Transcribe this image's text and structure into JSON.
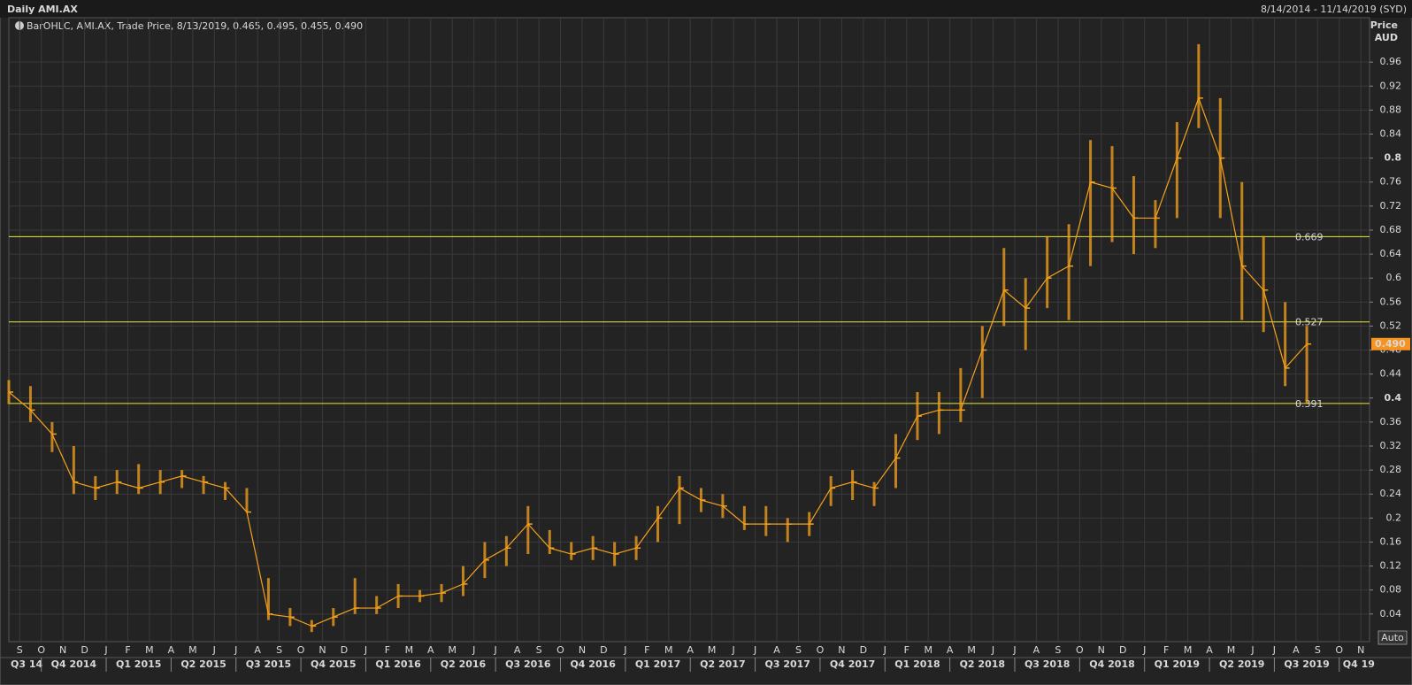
{
  "chart_data": {
    "type": "ohlc",
    "title": "Daily AMI.AX",
    "date_range": "8/14/2014 - 11/14/2019 (SYD)",
    "legend_text": "BarOHLC, AMI.AX, Trade Price, 8/13/2019, 0.465, 0.495, 0.455, 0.490",
    "y_axis_title": "Price",
    "y_axis_unit": "AUD",
    "button": "Auto",
    "x": [
      "2014-08",
      "2014-09",
      "2014-10",
      "2014-11",
      "2014-12",
      "2015-01",
      "2015-02",
      "2015-03",
      "2015-04",
      "2015-05",
      "2015-06",
      "2015-07",
      "2015-08",
      "2015-09",
      "2015-10",
      "2015-11",
      "2015-12",
      "2016-01",
      "2016-02",
      "2016-03",
      "2016-04",
      "2016-05",
      "2016-06",
      "2016-07",
      "2016-08",
      "2016-09",
      "2016-10",
      "2016-11",
      "2016-12",
      "2017-01",
      "2017-02",
      "2017-03",
      "2017-04",
      "2017-05",
      "2017-06",
      "2017-07",
      "2017-08",
      "2017-09",
      "2017-10",
      "2017-11",
      "2017-12",
      "2018-01",
      "2018-02",
      "2018-03",
      "2018-04",
      "2018-05",
      "2018-06",
      "2018-07",
      "2018-08",
      "2018-09",
      "2018-10",
      "2018-11",
      "2018-12",
      "2019-01",
      "2019-02",
      "2019-03",
      "2019-04",
      "2019-05",
      "2019-06",
      "2019-07",
      "2019-08"
    ],
    "series": [
      {
        "name": "AMI.AX",
        "color": "#f7a21b",
        "high": [
          0.43,
          0.42,
          0.36,
          0.32,
          0.27,
          0.28,
          0.29,
          0.28,
          0.28,
          0.27,
          0.26,
          0.25,
          0.1,
          0.05,
          0.03,
          0.05,
          0.1,
          0.07,
          0.09,
          0.08,
          0.09,
          0.12,
          0.16,
          0.17,
          0.22,
          0.18,
          0.16,
          0.17,
          0.16,
          0.17,
          0.22,
          0.27,
          0.25,
          0.24,
          0.22,
          0.22,
          0.2,
          0.21,
          0.27,
          0.28,
          0.26,
          0.34,
          0.41,
          0.41,
          0.45,
          0.52,
          0.65,
          0.6,
          0.67,
          0.69,
          0.83,
          0.82,
          0.77,
          0.73,
          0.86,
          0.99,
          0.9,
          0.76,
          0.67,
          0.56,
          0.52
        ],
        "low": [
          0.39,
          0.36,
          0.31,
          0.24,
          0.23,
          0.24,
          0.24,
          0.24,
          0.25,
          0.24,
          0.23,
          0.21,
          0.03,
          0.02,
          0.01,
          0.02,
          0.04,
          0.04,
          0.05,
          0.06,
          0.06,
          0.07,
          0.1,
          0.12,
          0.14,
          0.14,
          0.13,
          0.13,
          0.12,
          0.13,
          0.16,
          0.19,
          0.21,
          0.2,
          0.18,
          0.17,
          0.16,
          0.17,
          0.22,
          0.23,
          0.22,
          0.25,
          0.33,
          0.34,
          0.36,
          0.4,
          0.52,
          0.48,
          0.55,
          0.53,
          0.62,
          0.66,
          0.64,
          0.65,
          0.7,
          0.85,
          0.7,
          0.53,
          0.51,
          0.42,
          0.39
        ],
        "close": [
          0.41,
          0.38,
          0.34,
          0.26,
          0.25,
          0.26,
          0.25,
          0.26,
          0.27,
          0.26,
          0.25,
          0.21,
          0.04,
          0.035,
          0.02,
          0.035,
          0.05,
          0.05,
          0.07,
          0.07,
          0.075,
          0.09,
          0.13,
          0.15,
          0.19,
          0.15,
          0.14,
          0.15,
          0.14,
          0.15,
          0.2,
          0.25,
          0.23,
          0.22,
          0.19,
          0.19,
          0.19,
          0.19,
          0.25,
          0.26,
          0.25,
          0.3,
          0.37,
          0.38,
          0.38,
          0.48,
          0.58,
          0.55,
          0.6,
          0.62,
          0.76,
          0.75,
          0.7,
          0.7,
          0.8,
          0.9,
          0.8,
          0.62,
          0.58,
          0.45,
          0.49
        ]
      }
    ],
    "levels": [
      0.669,
      0.527,
      0.391
    ],
    "last_price": {
      "value": 0.49,
      "label": "0.490"
    },
    "ylim": [
      -0.006,
      1.034
    ],
    "yticks": [
      0.04,
      0.08,
      0.12,
      0.16,
      0.2,
      0.24,
      0.28,
      0.32,
      0.36,
      0.4,
      0.44,
      0.48,
      0.52,
      0.56,
      0.6,
      0.64,
      0.68,
      0.72,
      0.76,
      0.8,
      0.84,
      0.88,
      0.92,
      0.96
    ],
    "month_labels": [
      "S",
      "O",
      "N",
      "D",
      "J",
      "F",
      "M",
      "A",
      "M",
      "J",
      "J",
      "A",
      "S",
      "O",
      "N",
      "D",
      "J",
      "F",
      "M",
      "A",
      "M",
      "J",
      "J",
      "A",
      "S",
      "O",
      "N",
      "D",
      "J",
      "F",
      "M",
      "A",
      "M",
      "J",
      "J",
      "A",
      "S",
      "O",
      "N",
      "D",
      "J",
      "F",
      "M",
      "A",
      "M",
      "J",
      "J",
      "A",
      "S",
      "O",
      "N",
      "D",
      "J",
      "F",
      "M",
      "A",
      "M",
      "J",
      "J",
      "A",
      "S",
      "O",
      "N"
    ],
    "quarter_labels": [
      "Q3 14",
      "Q4 2014",
      "Q1 2015",
      "Q2 2015",
      "Q3 2015",
      "Q4 2015",
      "Q1 2016",
      "Q2 2016",
      "Q3 2016",
      "Q4 2016",
      "Q1 2017",
      "Q2 2017",
      "Q3 2017",
      "Q4 2017",
      "Q1 2018",
      "Q2 2018",
      "Q3 2018",
      "Q4 2018",
      "Q1 2019",
      "Q2 2019",
      "Q3 2019",
      "Q4 19"
    ],
    "grid": true
  }
}
